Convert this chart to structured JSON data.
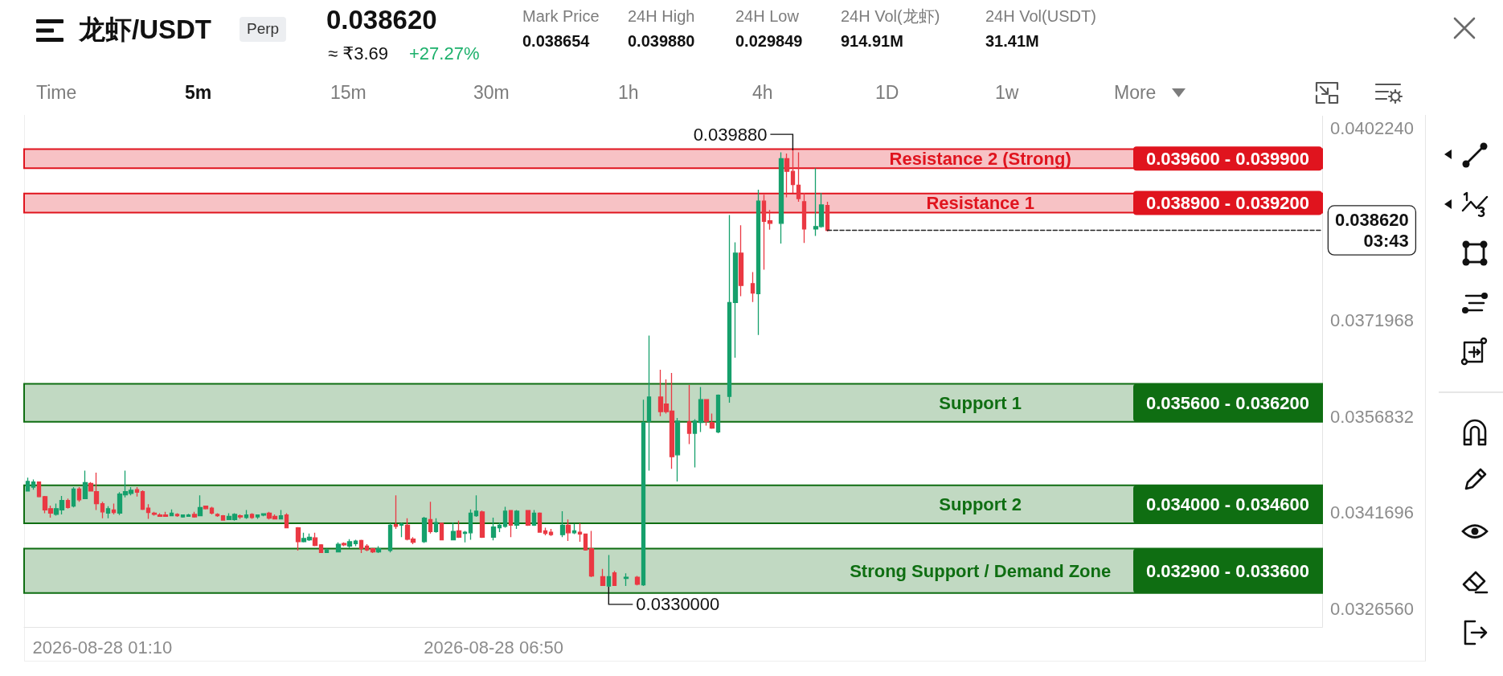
{
  "chart_data": {
    "type": "candlestick",
    "title": "龙虾/USDT",
    "x": [
      "2026-08-28T00:05",
      "2026-08-28T00:10",
      "2026-08-28T00:15",
      "2026-08-28T00:20",
      "2026-08-28T00:25",
      "2026-08-28T00:30",
      "2026-08-28T00:35",
      "2026-08-28T00:40",
      "2026-08-28T00:45",
      "2026-08-28T00:50",
      "2026-08-28T00:55",
      "2026-08-28T01:00",
      "2026-08-28T01:05",
      "2026-08-28T01:10",
      "2026-08-28T01:15",
      "2026-08-28T01:20",
      "2026-08-28T01:25",
      "2026-08-28T01:30",
      "2026-08-28T01:35",
      "2026-08-28T01:40",
      "2026-08-28T01:45",
      "2026-08-28T01:50",
      "2026-08-28T01:55",
      "2026-08-28T02:00",
      "2026-08-28T02:05",
      "2026-08-28T02:10",
      "2026-08-28T02:15",
      "2026-08-28T02:20",
      "2026-08-28T02:25",
      "2026-08-28T02:30",
      "2026-08-28T02:35",
      "2026-08-28T02:40",
      "2026-08-28T02:45",
      "2026-08-28T02:50",
      "2026-08-28T02:55",
      "2026-08-28T03:00",
      "2026-08-28T03:05",
      "2026-08-28T03:10",
      "2026-08-28T03:15",
      "2026-08-28T03:20",
      "2026-08-28T03:25",
      "2026-08-28T03:30",
      "2026-08-28T03:35",
      "2026-08-28T03:40",
      "2026-08-28T03:45",
      "2026-08-28T03:50",
      "2026-08-28T04:00",
      "2026-08-28T04:05",
      "2026-08-28T04:10",
      "2026-08-28T04:15",
      "2026-08-28T04:20",
      "2026-08-28T04:25",
      "2026-08-28T04:35",
      "2026-08-28T04:40",
      "2026-08-28T04:45",
      "2026-08-28T04:50",
      "2026-08-28T04:55",
      "2026-08-28T05:00",
      "2026-08-28T05:05",
      "2026-08-28T05:10",
      "2026-08-28T05:20",
      "2026-08-28T05:25",
      "2026-08-28T05:30",
      "2026-08-28T05:35",
      "2026-08-28T05:40",
      "2026-08-28T05:50",
      "2026-08-28T05:55",
      "2026-08-28T06:00",
      "2026-08-28T06:05",
      "2026-08-28T06:15",
      "2026-08-28T06:20",
      "2026-08-28T06:25",
      "2026-08-28T06:30",
      "2026-08-28T06:35",
      "2026-08-28T06:40",
      "2026-08-28T06:50",
      "2026-08-28T06:55",
      "2026-08-28T07:00",
      "2026-08-28T07:05",
      "2026-08-28T07:10",
      "2026-08-28T07:20",
      "2026-08-28T07:25",
      "2026-08-28T07:30",
      "2026-08-28T07:35",
      "2026-08-28T07:40",
      "2026-08-28T07:50",
      "2026-08-28T07:55",
      "2026-08-28T08:00",
      "2026-08-28T08:05",
      "2026-08-28T08:10",
      "2026-08-28T08:15",
      "2026-08-28T08:25",
      "2026-08-28T08:30",
      "2026-08-28T08:35",
      "2026-08-28T08:45",
      "2026-08-28T08:55",
      "2026-08-28T09:00",
      "2026-08-28T09:05",
      "2026-08-28T09:15",
      "2026-08-28T09:20",
      "2026-08-28T09:25",
      "2026-08-28T09:30",
      "2026-08-28T09:40",
      "2026-08-28T09:45",
      "2026-08-28T09:50",
      "2026-08-28T09:55",
      "2026-08-28T10:00",
      "2026-08-28T10:05",
      "2026-08-28T10:15",
      "2026-08-28T10:20",
      "2026-08-28T10:25",
      "2026-08-28T10:35",
      "2026-08-28T10:40",
      "2026-08-28T10:45",
      "2026-08-28T10:50",
      "2026-08-28T11:00",
      "2026-08-28T11:05",
      "2026-08-28T11:10",
      "2026-08-28T11:15",
      "2026-08-28T11:20",
      "2026-08-28T11:30",
      "2026-08-28T11:35",
      "2026-08-28T11:40"
    ],
    "ohlc": [
      [
        0.03451,
        0.03472,
        0.0345,
        0.03466
      ],
      [
        0.03457,
        0.03469,
        0.03453,
        0.03465
      ],
      [
        0.03465,
        0.03466,
        0.03441,
        0.03442
      ],
      [
        0.03442,
        0.03443,
        0.03416,
        0.03421
      ],
      [
        0.03423,
        0.03428,
        0.03409,
        0.03416
      ],
      [
        0.03414,
        0.03431,
        0.03412,
        0.03423
      ],
      [
        0.03421,
        0.03443,
        0.03414,
        0.03436
      ],
      [
        0.03436,
        0.03439,
        0.03423,
        0.03425
      ],
      [
        0.03427,
        0.03457,
        0.03425,
        0.03454
      ],
      [
        0.03454,
        0.03457,
        0.03434,
        0.03437
      ],
      [
        0.03439,
        0.03483,
        0.03438,
        0.03464
      ],
      [
        0.03463,
        0.03465,
        0.0345,
        0.03451
      ],
      [
        0.0345,
        0.0348,
        0.03421,
        0.03431
      ],
      [
        0.03431,
        0.03434,
        0.03408,
        0.03418
      ],
      [
        0.03416,
        0.03427,
        0.03408,
        0.03423
      ],
      [
        0.03421,
        0.03431,
        0.03414,
        0.03417
      ],
      [
        0.03416,
        0.03449,
        0.03413,
        0.03446
      ],
      [
        0.03445,
        0.03483,
        0.03441,
        0.0345
      ],
      [
        0.03447,
        0.03457,
        0.03444,
        0.03452
      ],
      [
        0.03453,
        0.03457,
        0.03442,
        0.03449
      ],
      [
        0.0345,
        0.03452,
        0.03421,
        0.03422
      ],
      [
        0.03424,
        0.0343,
        0.03407,
        0.03417
      ],
      [
        0.03416,
        0.03418,
        0.03412,
        0.03414
      ],
      [
        0.03413,
        0.03416,
        0.0341,
        0.03411
      ],
      [
        0.03413,
        0.03418,
        0.0341,
        0.03411
      ],
      [
        0.03412,
        0.03422,
        0.03411,
        0.03416
      ],
      [
        0.03414,
        0.03416,
        0.0341,
        0.03412
      ],
      [
        0.0341,
        0.03414,
        0.03409,
        0.03413
      ],
      [
        0.03411,
        0.03415,
        0.0341,
        0.03413
      ],
      [
        0.03414,
        0.03418,
        0.03409,
        0.0341
      ],
      [
        0.03412,
        0.03444,
        0.03411,
        0.03425
      ],
      [
        0.03427,
        0.03428,
        0.03422,
        0.03423
      ],
      [
        0.03424,
        0.03426,
        0.03414,
        0.03416
      ],
      [
        0.03414,
        0.03416,
        0.0341,
        0.03412
      ],
      [
        0.03412,
        0.03413,
        0.03404,
        0.03405
      ],
      [
        0.03406,
        0.03416,
        0.03405,
        0.03411
      ],
      [
        0.03406,
        0.03416,
        0.03404,
        0.03414
      ],
      [
        0.03412,
        0.03414,
        0.03407,
        0.0341
      ],
      [
        0.03409,
        0.03421,
        0.03407,
        0.03413
      ],
      [
        0.03414,
        0.03416,
        0.03407,
        0.03409
      ],
      [
        0.0341,
        0.03414,
        0.03407,
        0.03413
      ],
      [
        0.03413,
        0.03416,
        0.03411,
        0.03415
      ],
      [
        0.03416,
        0.03418,
        0.03406,
        0.03408
      ],
      [
        0.03411,
        0.03414,
        0.03406,
        0.03407
      ],
      [
        0.03407,
        0.03421,
        0.03406,
        0.03412
      ],
      [
        0.03413,
        0.03416,
        0.03392,
        0.03393
      ],
      [
        0.03393,
        0.03394,
        0.03357,
        0.03371
      ],
      [
        0.03371,
        0.03385,
        0.0337,
        0.03376
      ],
      [
        0.03374,
        0.03384,
        0.03372,
        0.03378
      ],
      [
        0.03377,
        0.03385,
        0.03364,
        0.03365
      ],
      [
        0.03366,
        0.03367,
        0.03353,
        0.03354
      ],
      [
        0.03354,
        0.0336,
        0.03353,
        0.03358
      ],
      [
        0.03355,
        0.0337,
        0.03354,
        0.03367
      ],
      [
        0.03368,
        0.0337,
        0.03364,
        0.03366
      ],
      [
        0.03364,
        0.03375,
        0.03361,
        0.03371
      ],
      [
        0.03368,
        0.03374,
        0.03364,
        0.03372
      ],
      [
        0.03373,
        0.03374,
        0.03353,
        0.0336
      ],
      [
        0.03364,
        0.03367,
        0.03356,
        0.03358
      ],
      [
        0.0336,
        0.03361,
        0.03353,
        0.03355
      ],
      [
        0.03355,
        0.03364,
        0.03353,
        0.0336
      ],
      [
        0.03357,
        0.034,
        0.03354,
        0.03397
      ],
      [
        0.03398,
        0.03444,
        0.03391,
        0.03395
      ],
      [
        0.03397,
        0.03401,
        0.03378,
        0.03399
      ],
      [
        0.03397,
        0.03408,
        0.03373,
        0.03375
      ],
      [
        0.03375,
        0.03378,
        0.03367,
        0.0337
      ],
      [
        0.03371,
        0.0341,
        0.03369,
        0.03408
      ],
      [
        0.03406,
        0.03434,
        0.03384,
        0.03387
      ],
      [
        0.03387,
        0.03408,
        0.03385,
        0.03401
      ],
      [
        0.034,
        0.03401,
        0.03373,
        0.03374
      ],
      [
        0.03374,
        0.03401,
        0.03373,
        0.03387
      ],
      [
        0.03388,
        0.03404,
        0.03377,
        0.03378
      ],
      [
        0.03384,
        0.03388,
        0.0337,
        0.03386
      ],
      [
        0.03385,
        0.03422,
        0.03374,
        0.03416
      ],
      [
        0.03412,
        0.03444,
        0.0341,
        0.03419
      ],
      [
        0.03418,
        0.0342,
        0.03377,
        0.03378
      ],
      [
        0.03378,
        0.03409,
        0.03373,
        0.03394
      ],
      [
        0.03393,
        0.03401,
        0.03386,
        0.03397
      ],
      [
        0.03395,
        0.03426,
        0.03393,
        0.03419
      ],
      [
        0.0342,
        0.03421,
        0.03378,
        0.03397
      ],
      [
        0.03397,
        0.03421,
        0.03391,
        0.03419
      ],
      [
        0.0342,
        0.03421,
        0.03396,
        0.03397
      ],
      [
        0.03397,
        0.03421,
        0.03396,
        0.03416
      ],
      [
        0.03416,
        0.03417,
        0.03385,
        0.03386
      ],
      [
        0.03388,
        0.03393,
        0.03381,
        0.03384
      ],
      [
        0.03386,
        0.03391,
        0.0338,
        0.03382
      ],
      [
        0.03382,
        0.03419,
        0.03378,
        0.03397
      ],
      [
        0.03397,
        0.03406,
        0.03372,
        0.03385
      ],
      [
        0.03385,
        0.03399,
        0.03383,
        0.03388
      ],
      [
        0.03386,
        0.034,
        0.03371,
        0.03383
      ],
      [
        0.03383,
        0.03384,
        0.03357,
        0.03358
      ],
      [
        0.0336,
        0.03388,
        0.03315,
        0.03317
      ],
      [
        0.03316,
        0.03328,
        0.03301,
        0.03302
      ],
      [
        0.03301,
        0.0335,
        0.033,
        0.03316
      ],
      [
        0.03322,
        0.03325,
        0.03301,
        0.03302
      ],
      [
        0.03313,
        0.03321,
        0.03301,
        0.03315
      ],
      [
        0.03315,
        0.03317,
        0.03302,
        0.03304
      ],
      [
        0.03303,
        0.03595,
        0.03301,
        0.03559
      ],
      [
        0.03561,
        0.03696,
        0.03483,
        0.03599
      ],
      [
        0.03599,
        0.03642,
        0.03569,
        0.03576
      ],
      [
        0.03588,
        0.03627,
        0.03573,
        0.03576
      ],
      [
        0.03577,
        0.03637,
        0.03486,
        0.03505
      ],
      [
        0.03508,
        0.03566,
        0.03466,
        0.03561
      ],
      [
        0.0356,
        0.03618,
        0.03525,
        0.03542
      ],
      [
        0.03542,
        0.03564,
        0.03488,
        0.03561
      ],
      [
        0.03559,
        0.03615,
        0.03544,
        0.03595
      ],
      [
        0.03595,
        0.03596,
        0.03554,
        0.03561
      ],
      [
        0.03559,
        0.03573,
        0.03549,
        0.0355
      ],
      [
        0.03544,
        0.03603,
        0.03542,
        0.03602
      ],
      [
        0.036,
        0.03886,
        0.0359,
        0.03748
      ],
      [
        0.03748,
        0.03843,
        0.03661,
        0.03826
      ],
      [
        0.03826,
        0.0387,
        0.03758,
        0.03775
      ],
      [
        0.03778,
        0.03796,
        0.03749,
        0.03763
      ],
      [
        0.03762,
        0.03926,
        0.03697,
        0.03908
      ],
      [
        0.03908,
        0.03918,
        0.038,
        0.03876
      ],
      [
        0.03877,
        0.03894,
        0.03863,
        0.03873
      ],
      [
        0.03873,
        0.03985,
        0.03841,
        0.03975
      ],
      [
        0.03975,
        0.03983,
        0.03914,
        0.03955
      ],
      [
        0.03955,
        0.03988,
        0.03921,
        0.03934
      ],
      [
        0.03933,
        0.03985,
        0.03907,
        0.03912
      ],
      [
        0.03907,
        0.03921,
        0.03842,
        0.03864
      ],
      [
        0.03864,
        0.0396,
        0.03853,
        0.03868
      ],
      [
        0.03868,
        0.03921,
        0.03866,
        0.03902
      ],
      [
        0.03901,
        0.03907,
        0.0386,
        0.03862
      ]
    ],
    "colors": [
      "#16a06c",
      "#16a06c",
      "#ea3943",
      "#ea3943",
      "#ea3943",
      "#16a06c",
      "#16a06c",
      "#ea3943",
      "#16a06c",
      "#ea3943",
      "#16a06c",
      "#ea3943",
      "#ea3943",
      "#ea3943",
      "#16a06c",
      "#ea3943",
      "#16a06c",
      "#16a06c",
      "#16a06c",
      "#ea3943",
      "#ea3943",
      "#ea3943",
      "#ea3943",
      "#ea3943",
      "#ea3943",
      "#16a06c",
      "#ea3943",
      "#16a06c",
      "#16a06c",
      "#ea3943",
      "#16a06c",
      "#ea3943",
      "#ea3943",
      "#ea3943",
      "#ea3943",
      "#16a06c",
      "#16a06c",
      "#ea3943",
      "#16a06c",
      "#ea3943",
      "#16a06c",
      "#16a06c",
      "#ea3943",
      "#ea3943",
      "#16a06c",
      "#ea3943",
      "#ea3943",
      "#16a06c",
      "#16a06c",
      "#ea3943",
      "#ea3943",
      "#16a06c",
      "#16a06c",
      "#ea3943",
      "#16a06c",
      "#16a06c",
      "#ea3943",
      "#ea3943",
      "#ea3943",
      "#16a06c",
      "#16a06c",
      "#ea3943",
      "#16a06c",
      "#ea3943",
      "#ea3943",
      "#16a06c",
      "#ea3943",
      "#16a06c",
      "#ea3943",
      "#16a06c",
      "#ea3943",
      "#16a06c",
      "#16a06c",
      "#16a06c",
      "#ea3943",
      "#16a06c",
      "#16a06c",
      "#16a06c",
      "#ea3943",
      "#16a06c",
      "#ea3943",
      "#16a06c",
      "#ea3943",
      "#ea3943",
      "#ea3943",
      "#16a06c",
      "#ea3943",
      "#16a06c",
      "#ea3943",
      "#ea3943",
      "#ea3943",
      "#ea3943",
      "#16a06c",
      "#ea3943",
      "#16a06c",
      "#ea3943",
      "#16a06c",
      "#16a06c",
      "#ea3943",
      "#ea3943",
      "#ea3943",
      "#16a06c",
      "#ea3943",
      "#16a06c",
      "#16a06c",
      "#ea3943",
      "#ea3943",
      "#16a06c",
      "#16a06c",
      "#16a06c",
      "#ea3943",
      "#ea3943",
      "#16a06c",
      "#ea3943",
      "#ea3943",
      "#16a06c",
      "#ea3943",
      "#ea3943",
      "#ea3943",
      "#ea3943",
      "#16a06c",
      "#16a06c",
      "#ea3943"
    ],
    "xlim": [
      "2026-08-28T00:02",
      "2026-08-28T18:50"
    ],
    "xticks": [
      {
        "value": "2026-08-28T01:10",
        "label": "2026-08-28 01:10"
      },
      {
        "value": "2026-08-28T06:50",
        "label": "2026-08-28 06:50"
      }
    ],
    "ylim": [
      0.03236,
      0.04042
    ],
    "yticks": [
      {
        "value": 0.032656,
        "label": "0.0326560"
      },
      {
        "value": 0.0341696,
        "label": "0.0341696"
      },
      {
        "value": 0.0356832,
        "label": "0.0356832"
      },
      {
        "value": 0.0371968,
        "label": "0.0371968"
      },
      {
        "value": 0.040224,
        "label": "0.0402240"
      }
    ],
    "bands": [
      {
        "axis": "y",
        "from": 0.0396,
        "to": 0.0399,
        "label": "Resistance 2 (Strong)",
        "color": "#e0141e"
      },
      {
        "axis": "y",
        "from": 0.0389,
        "to": 0.0392,
        "label": "Resistance 1",
        "color": "#e0141e"
      },
      {
        "axis": "y",
        "from": 0.0356,
        "to": 0.0362,
        "label": "Support 1",
        "color": "#0f6e12"
      },
      {
        "axis": "y",
        "from": 0.034,
        "to": 0.0346,
        "label": "Support 2",
        "color": "#0f6e12"
      },
      {
        "axis": "y",
        "from": 0.0329,
        "to": 0.0336,
        "label": "Strong Support / Demand Zone",
        "color": "#0f6e12"
      }
    ],
    "ref_lines": [
      {
        "axis": "y",
        "value": 0.03862,
        "label": "0.038620\n03:43",
        "color": "#222222",
        "line_style": "dashed"
      }
    ],
    "annotations": [
      "Perp",
      "0.038620",
      "≈ ₹3.69",
      "+27.27%",
      "Mark Price",
      "0.038654",
      "24H High",
      "0.039880",
      "24H Low",
      "0.029849",
      "24H Vol(龙虾)",
      "914.91M",
      "24H Vol(USDT)",
      "31.41M",
      "Time",
      "5m",
      "15m",
      "30m",
      "1h",
      "4h",
      "1D",
      "1w",
      "More",
      "0.039600 - 0.039900",
      "0.038900 - 0.039200",
      "0.035600 - 0.036200",
      "0.034000 - 0.034600",
      "0.032900 - 0.033600",
      {
        "text": "0.039880",
        "x": "2026-08-28T11:10",
        "y": 0.03988
      },
      {
        "text": "0.0330000",
        "x": "2026-08-28T08:30",
        "y": 0.033
      }
    ]
  }
}
